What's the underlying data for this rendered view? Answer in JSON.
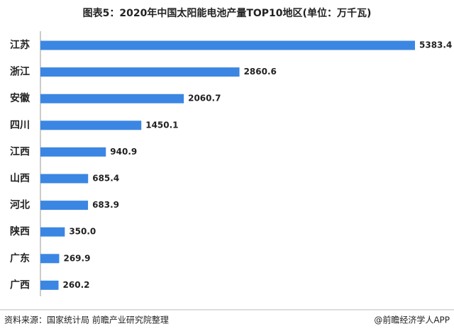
{
  "chart_data": {
    "type": "bar",
    "orientation": "horizontal",
    "title": "图表5：2020年中国太阳能电池产量TOP10地区(单位：万千瓦)",
    "categories": [
      "江苏",
      "浙江",
      "安徽",
      "四川",
      "江西",
      "山西",
      "河北",
      "陕西",
      "广东",
      "广西"
    ],
    "values": [
      5383.4,
      2860.6,
      2060.7,
      1450.1,
      940.9,
      685.4,
      683.9,
      350.0,
      269.9,
      260.2
    ],
    "value_labels": [
      "5383.4",
      "2860.6",
      "2060.7",
      "1450.1",
      "940.9",
      "685.4",
      "683.9",
      "350.0",
      "269.9",
      "260.2"
    ],
    "color": "#3b86e3",
    "source": "资料来源：国家统计局 前瞻产业研究院整理",
    "credit": "@前瞻经济学人APP"
  }
}
